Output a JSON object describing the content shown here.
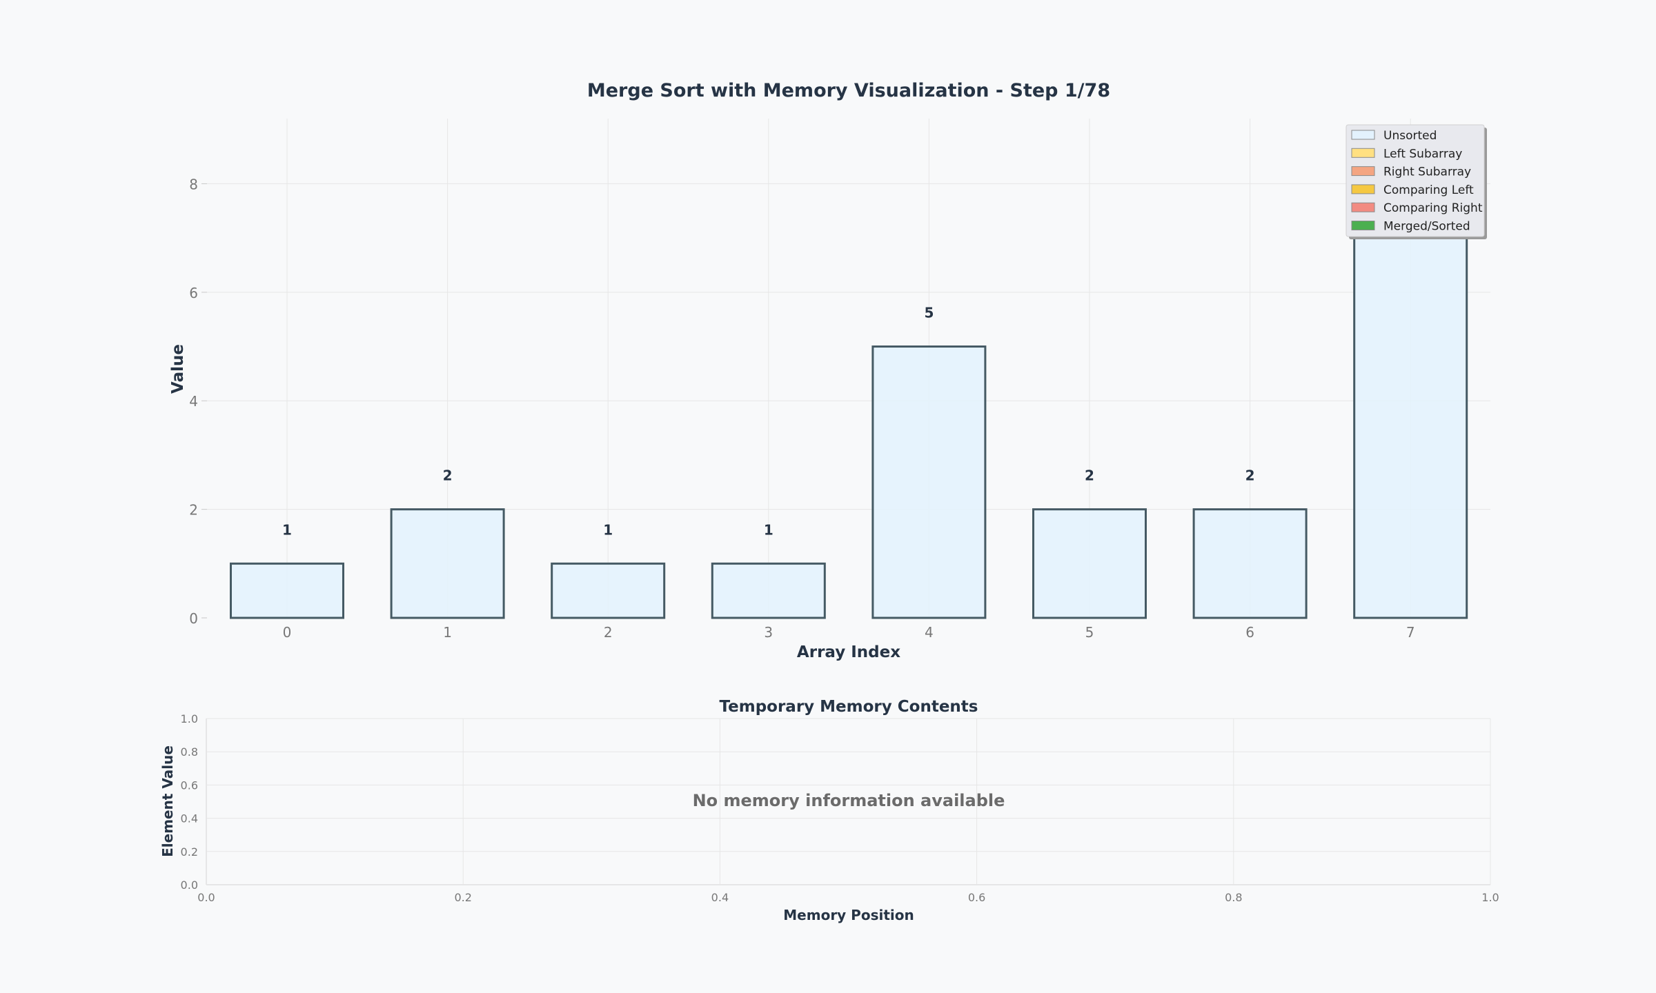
{
  "chart_data": [
    {
      "type": "bar",
      "title": "Merge Sort with Memory Visualization - Step 1/78",
      "xlabel": "Array Index",
      "ylabel": "Value",
      "categories": [
        "0",
        "1",
        "2",
        "3",
        "4",
        "5",
        "6",
        "7"
      ],
      "values": [
        1,
        2,
        1,
        1,
        5,
        2,
        2,
        9
      ],
      "data_labels": [
        "1",
        "2",
        "1",
        "1",
        "5",
        "2",
        "2",
        ""
      ],
      "ylim": [
        0,
        9.2
      ],
      "yticks": [
        "0",
        "2",
        "4",
        "6",
        "8"
      ],
      "grid": true,
      "bar_state": "Unsorted",
      "legend": {
        "placement": "top-right",
        "entries": [
          {
            "name": "Unsorted",
            "color": "#e3f2fd"
          },
          {
            "name": "Left Subarray",
            "color": "#ffe082"
          },
          {
            "name": "Right Subarray",
            "color": "#f4a582"
          },
          {
            "name": "Comparing Left",
            "color": "#f5c842"
          },
          {
            "name": "Comparing Right",
            "color": "#f28b82"
          },
          {
            "name": "Merged/Sorted",
            "color": "#4caf50"
          }
        ]
      }
    },
    {
      "type": "scatter",
      "title": "Temporary Memory Contents",
      "xlabel": "Memory Position",
      "ylabel": "Element Value",
      "xlim": [
        0,
        1
      ],
      "ylim": [
        0,
        1
      ],
      "xticks": [
        "0.0",
        "0.2",
        "0.4",
        "0.6",
        "0.8",
        "1.0"
      ],
      "yticks": [
        "0.0",
        "0.2",
        "0.4",
        "0.6",
        "0.8",
        "1.0"
      ],
      "grid": true,
      "series": [],
      "annotation": "No memory information available"
    }
  ],
  "colors": {
    "text_dark": "#263445",
    "tick_text": "#777777",
    "bar_edge": "#455a64",
    "grid": "#e6e6e6",
    "legend_bg": "#e8e9ee",
    "empty_msg": "#6b6b6b"
  }
}
